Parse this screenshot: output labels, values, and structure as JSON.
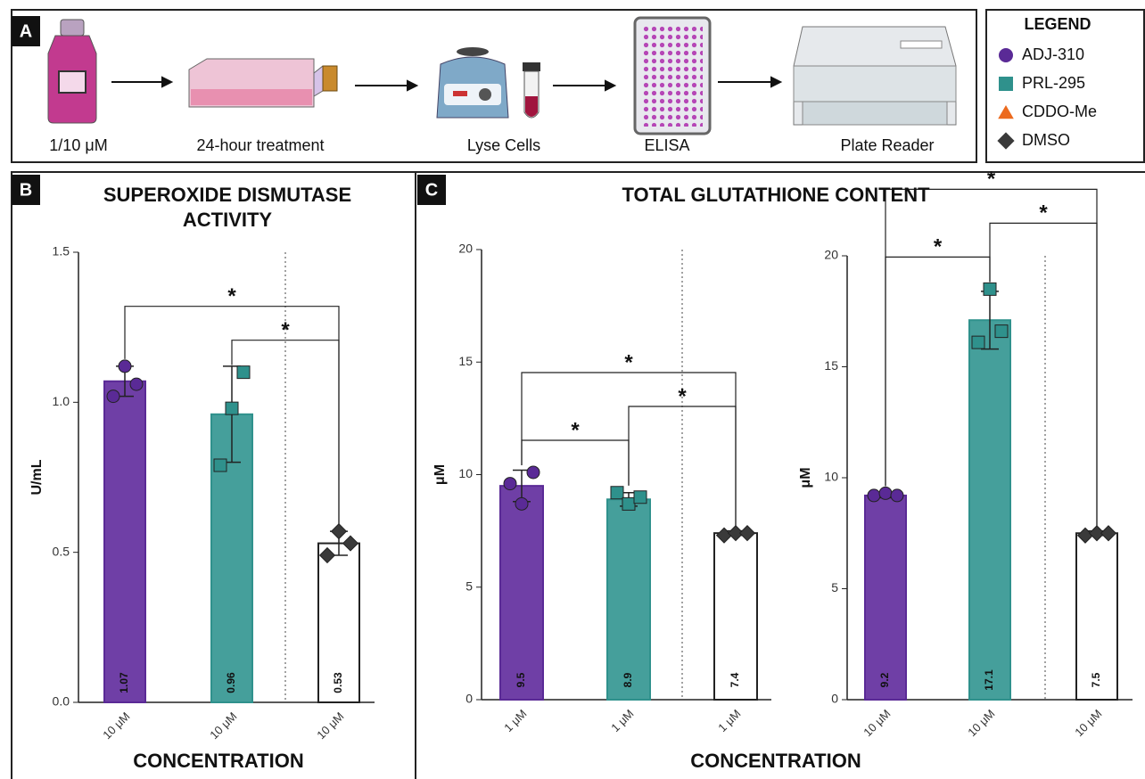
{
  "panel_a": {
    "label": "A",
    "steps": [
      "1/10 μM",
      "24-hour treatment",
      "Lyse Cells",
      "ELISA",
      "Plate Reader"
    ]
  },
  "legend": {
    "title": "LEGEND",
    "items": [
      {
        "name": "ADJ-310",
        "color": "#5a2a96",
        "shape": "circle"
      },
      {
        "name": "PRL-295",
        "color": "#2f918c",
        "shape": "square"
      },
      {
        "name": "CDDO-Me",
        "color": "#ec6a1e",
        "shape": "triangle"
      },
      {
        "name": "DMSO",
        "color": "#3a3a3a",
        "shape": "diamond"
      }
    ]
  },
  "panel_b": {
    "label": "B"
  },
  "panel_c": {
    "label": "C",
    "title": "TOTAL GLUTATHIONE CONTENT",
    "xlabel": "CONCENTRATION"
  },
  "chart_data": [
    {
      "type": "bar",
      "title": "SUPEROXIDE DISMUTASE ACTIVITY",
      "ylabel": "U/mL",
      "xlabel": "CONCENTRATION",
      "categories": [
        "10 μM",
        "10 μM",
        "10 μM"
      ],
      "values": [
        1.07,
        0.96,
        0.53
      ],
      "errors": [
        0.05,
        0.16,
        0.04
      ],
      "points": [
        [
          1.02,
          1.12,
          1.06
        ],
        [
          0.79,
          0.98,
          1.1
        ],
        [
          0.49,
          0.57,
          0.53
        ]
      ],
      "colors": [
        "#6f3fa6",
        "#459f9b",
        "#ffffff"
      ],
      "marker_colors": [
        "#5a2a96",
        "#2f918c",
        "#3a3a3a"
      ],
      "markers": [
        "circle",
        "square",
        "diamond"
      ],
      "ylim": [
        0,
        1.5
      ],
      "yticks": [
        {
          "value": 0,
          "label": "0.0"
        },
        0.5,
        {
          "value": 1,
          "label": "1.0"
        },
        1.5
      ],
      "brackets": [
        {
          "from": 1,
          "to": 2,
          "label": "*"
        },
        {
          "from": 0,
          "to": 2,
          "label": "*"
        }
      ]
    },
    {
      "type": "bar",
      "ylabel": "μM",
      "categories": [
        "1 μM",
        "1 μM",
        "1 μM"
      ],
      "values": [
        9.5,
        8.9,
        7.4
      ],
      "errors": [
        0.7,
        0.3,
        0.1
      ],
      "points": [
        [
          9.6,
          8.7,
          10.1
        ],
        [
          9.2,
          8.7,
          9.0
        ],
        [
          7.3,
          7.4,
          7.4
        ]
      ],
      "colors": [
        "#6f3fa6",
        "#459f9b",
        "#ffffff"
      ],
      "marker_colors": [
        "#5a2a96",
        "#2f918c",
        "#3a3a3a"
      ],
      "markers": [
        "circle",
        "square",
        "diamond"
      ],
      "ylim": [
        0,
        20
      ],
      "yticks": [
        0,
        5,
        10,
        15,
        20
      ],
      "brackets": [
        {
          "from": 0,
          "to": 1,
          "label": "*"
        },
        {
          "from": 1,
          "to": 2,
          "label": "*"
        },
        {
          "from": 0,
          "to": 2,
          "label": "*"
        }
      ]
    },
    {
      "type": "bar",
      "ylabel": "μM",
      "categories": [
        "10 μM",
        "10 μM",
        "10 μM"
      ],
      "values": [
        9.2,
        17.1,
        7.5
      ],
      "errors": [
        0.1,
        1.3,
        0.1
      ],
      "points": [
        [
          9.2,
          9.3,
          9.2
        ],
        [
          16.1,
          18.5,
          16.6
        ],
        [
          7.4,
          7.5,
          7.5
        ]
      ],
      "colors": [
        "#6f3fa6",
        "#459f9b",
        "#ffffff"
      ],
      "marker_colors": [
        "#5a2a96",
        "#2f918c",
        "#3a3a3a"
      ],
      "markers": [
        "circle",
        "square",
        "diamond"
      ],
      "ylim": [
        0,
        20
      ],
      "yticks": [
        0,
        5,
        10,
        15,
        20
      ],
      "brackets": [
        {
          "from": 0,
          "to": 1,
          "label": "*"
        },
        {
          "from": 1,
          "to": 2,
          "label": "*"
        },
        {
          "from": 0,
          "to": 2,
          "label": "*"
        }
      ]
    }
  ]
}
